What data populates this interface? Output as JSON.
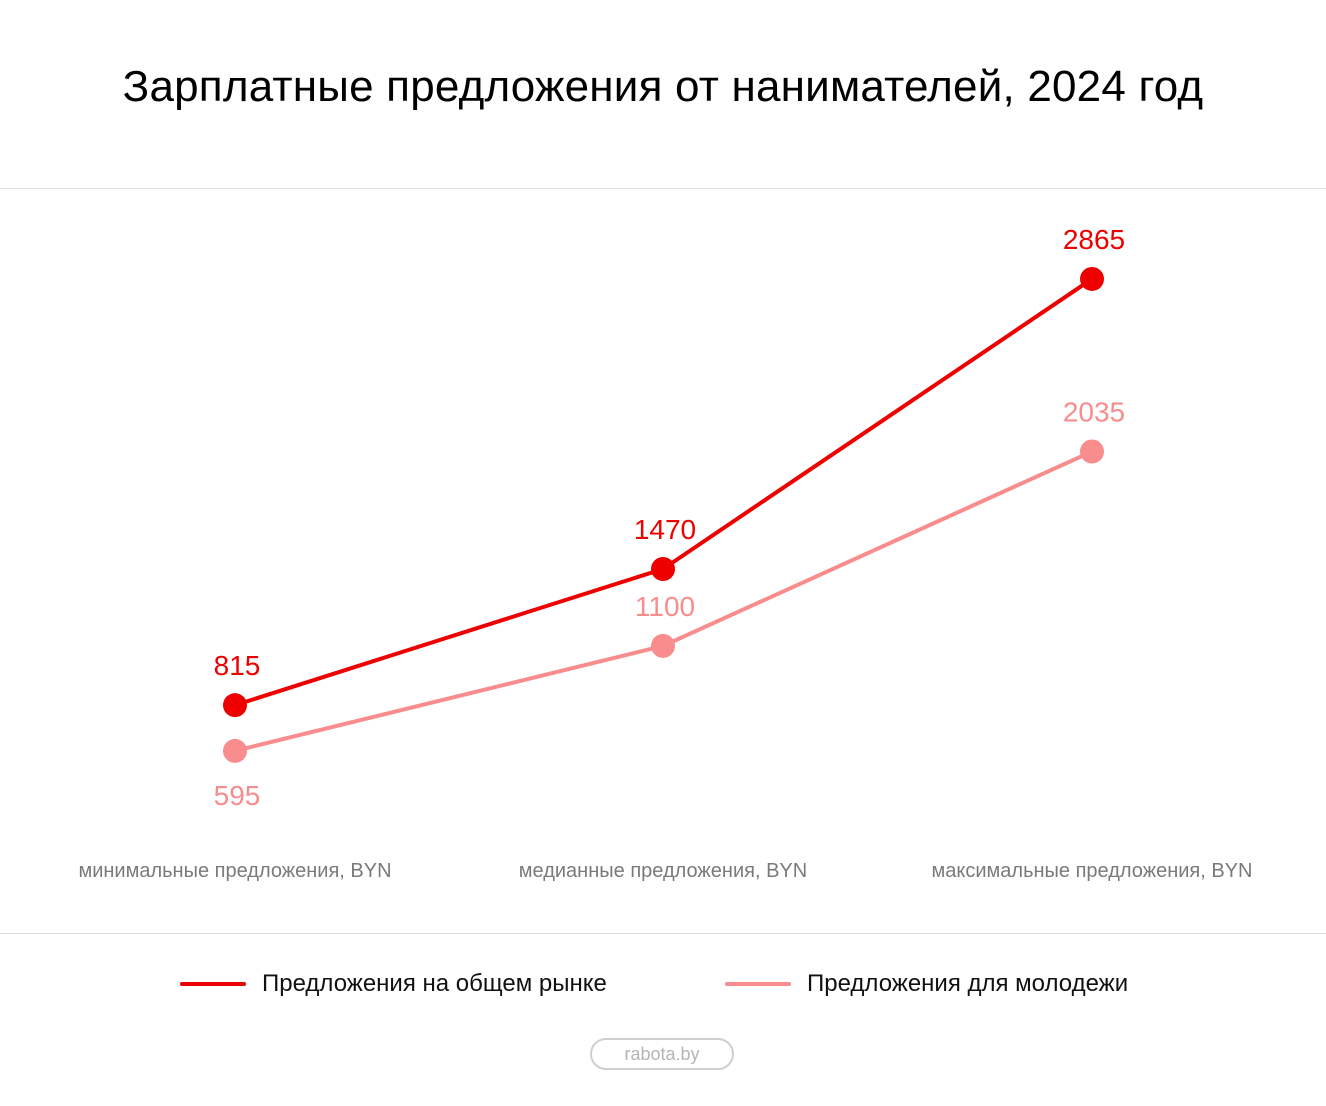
{
  "title": "Зарплатные предложения от нанимателей, 2024 год",
  "source": "rabota.by",
  "colors": {
    "general": "#ee0000",
    "youth": "#f98c8c",
    "category_text": "#7a7a7a"
  },
  "chart_data": {
    "type": "line",
    "title": "Зарплатные предложения от нанимателей, 2024 год",
    "categories": [
      "минимальные предложения, BYN",
      "медианные предложения, BYN",
      "максимальные предложения, BYN"
    ],
    "series": [
      {
        "name": "Предложения на общем рынке",
        "values": [
          815,
          1470,
          2865
        ],
        "color": "#ee0000"
      },
      {
        "name": "Предложения для молодежи",
        "values": [
          595,
          1100,
          2035
        ],
        "color": "#f98c8c"
      }
    ],
    "legend": "bottom-center",
    "grid": false
  }
}
